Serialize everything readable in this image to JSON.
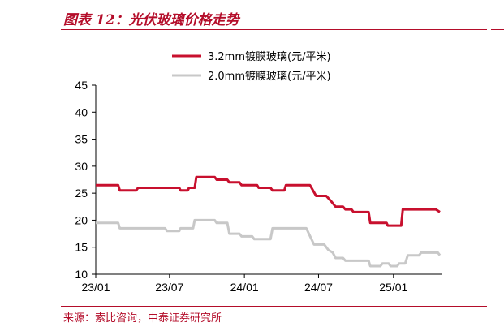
{
  "figure": {
    "title": "图表 12：光伏玻璃价格走势",
    "source": "来源：索比咨询，中泰证券研究所"
  },
  "colors": {
    "accent": "#b40d2a",
    "series_32": "#c8102e",
    "series_20": "#c8c8c8"
  },
  "chart_data": {
    "type": "line",
    "title": "",
    "xlabel": "",
    "ylabel": "",
    "ylim": [
      10,
      45
    ],
    "yticks": [
      10,
      15,
      20,
      25,
      30,
      35,
      40,
      45
    ],
    "x_tick_labels": [
      "23/01",
      "23/07",
      "24/01",
      "24/07",
      "25/01"
    ],
    "x_tick_values": [
      "2023-01",
      "2023-07",
      "2024-01",
      "2024-07",
      "2025-01"
    ],
    "xlim": [
      "2023-01",
      "2025-05"
    ],
    "grid": false,
    "legend_position": "top-center",
    "series": [
      {
        "name": "3.2mm镀膜玻璃(元/平米)",
        "color": "#c8102e",
        "points": [
          [
            "2023-01-01",
            26.5
          ],
          [
            "2023-02-25",
            26.5
          ],
          [
            "2023-03-01",
            25.5
          ],
          [
            "2023-04-10",
            25.5
          ],
          [
            "2023-04-15",
            26.0
          ],
          [
            "2023-07-25",
            26.0
          ],
          [
            "2023-07-28",
            25.5
          ],
          [
            "2023-08-15",
            25.5
          ],
          [
            "2023-08-18",
            26.0
          ],
          [
            "2023-09-01",
            26.0
          ],
          [
            "2023-09-05",
            28.0
          ],
          [
            "2023-10-20",
            28.0
          ],
          [
            "2023-10-25",
            27.5
          ],
          [
            "2023-11-20",
            27.5
          ],
          [
            "2023-11-25",
            27.0
          ],
          [
            "2023-12-20",
            27.0
          ],
          [
            "2023-12-25",
            26.5
          ],
          [
            "2024-02-01",
            26.5
          ],
          [
            "2024-02-05",
            26.0
          ],
          [
            "2024-03-05",
            26.0
          ],
          [
            "2024-03-10",
            25.5
          ],
          [
            "2024-04-08",
            25.5
          ],
          [
            "2024-04-12",
            26.5
          ],
          [
            "2024-06-10",
            26.5
          ],
          [
            "2024-06-25",
            24.5
          ],
          [
            "2024-07-20",
            24.5
          ],
          [
            "2024-08-01",
            23.5
          ],
          [
            "2024-08-12",
            22.5
          ],
          [
            "2024-08-30",
            22.5
          ],
          [
            "2024-09-05",
            22.0
          ],
          [
            "2024-09-20",
            22.0
          ],
          [
            "2024-09-25",
            21.5
          ],
          [
            "2024-11-01",
            21.5
          ],
          [
            "2024-11-05",
            19.5
          ],
          [
            "2024-12-15",
            19.5
          ],
          [
            "2024-12-18",
            19.0
          ],
          [
            "2025-01-20",
            19.0
          ],
          [
            "2025-01-24",
            22.0
          ],
          [
            "2025-04-15",
            22.0
          ],
          [
            "2025-04-25",
            21.5
          ]
        ]
      },
      {
        "name": "2.0mm镀膜玻璃(元/平米)",
        "color": "#c8c8c8",
        "points": [
          [
            "2023-01-01",
            19.5
          ],
          [
            "2023-02-25",
            19.5
          ],
          [
            "2023-03-01",
            18.5
          ],
          [
            "2023-06-20",
            18.5
          ],
          [
            "2023-06-25",
            18.0
          ],
          [
            "2023-07-25",
            18.0
          ],
          [
            "2023-07-28",
            18.5
          ],
          [
            "2023-08-28",
            18.5
          ],
          [
            "2023-09-01",
            20.0
          ],
          [
            "2023-10-20",
            20.0
          ],
          [
            "2023-10-25",
            19.5
          ],
          [
            "2023-11-20",
            19.5
          ],
          [
            "2023-11-25",
            17.5
          ],
          [
            "2023-12-20",
            17.5
          ],
          [
            "2023-12-25",
            17.0
          ],
          [
            "2024-01-20",
            17.0
          ],
          [
            "2024-01-25",
            16.5
          ],
          [
            "2024-03-05",
            16.5
          ],
          [
            "2024-03-10",
            18.5
          ],
          [
            "2024-06-01",
            18.5
          ],
          [
            "2024-06-20",
            15.5
          ],
          [
            "2024-07-15",
            15.5
          ],
          [
            "2024-07-25",
            14.5
          ],
          [
            "2024-08-05",
            14.0
          ],
          [
            "2024-08-12",
            13.0
          ],
          [
            "2024-08-30",
            13.0
          ],
          [
            "2024-09-05",
            12.5
          ],
          [
            "2024-11-01",
            12.5
          ],
          [
            "2024-11-05",
            11.5
          ],
          [
            "2024-11-30",
            11.5
          ],
          [
            "2024-12-05",
            12.0
          ],
          [
            "2024-12-20",
            12.0
          ],
          [
            "2024-12-25",
            11.5
          ],
          [
            "2025-01-10",
            11.5
          ],
          [
            "2025-01-15",
            12.0
          ],
          [
            "2025-01-30",
            12.0
          ],
          [
            "2025-02-05",
            13.5
          ],
          [
            "2025-03-05",
            13.5
          ],
          [
            "2025-03-10",
            14.0
          ],
          [
            "2025-04-20",
            14.0
          ],
          [
            "2025-04-25",
            13.5
          ]
        ]
      }
    ]
  }
}
